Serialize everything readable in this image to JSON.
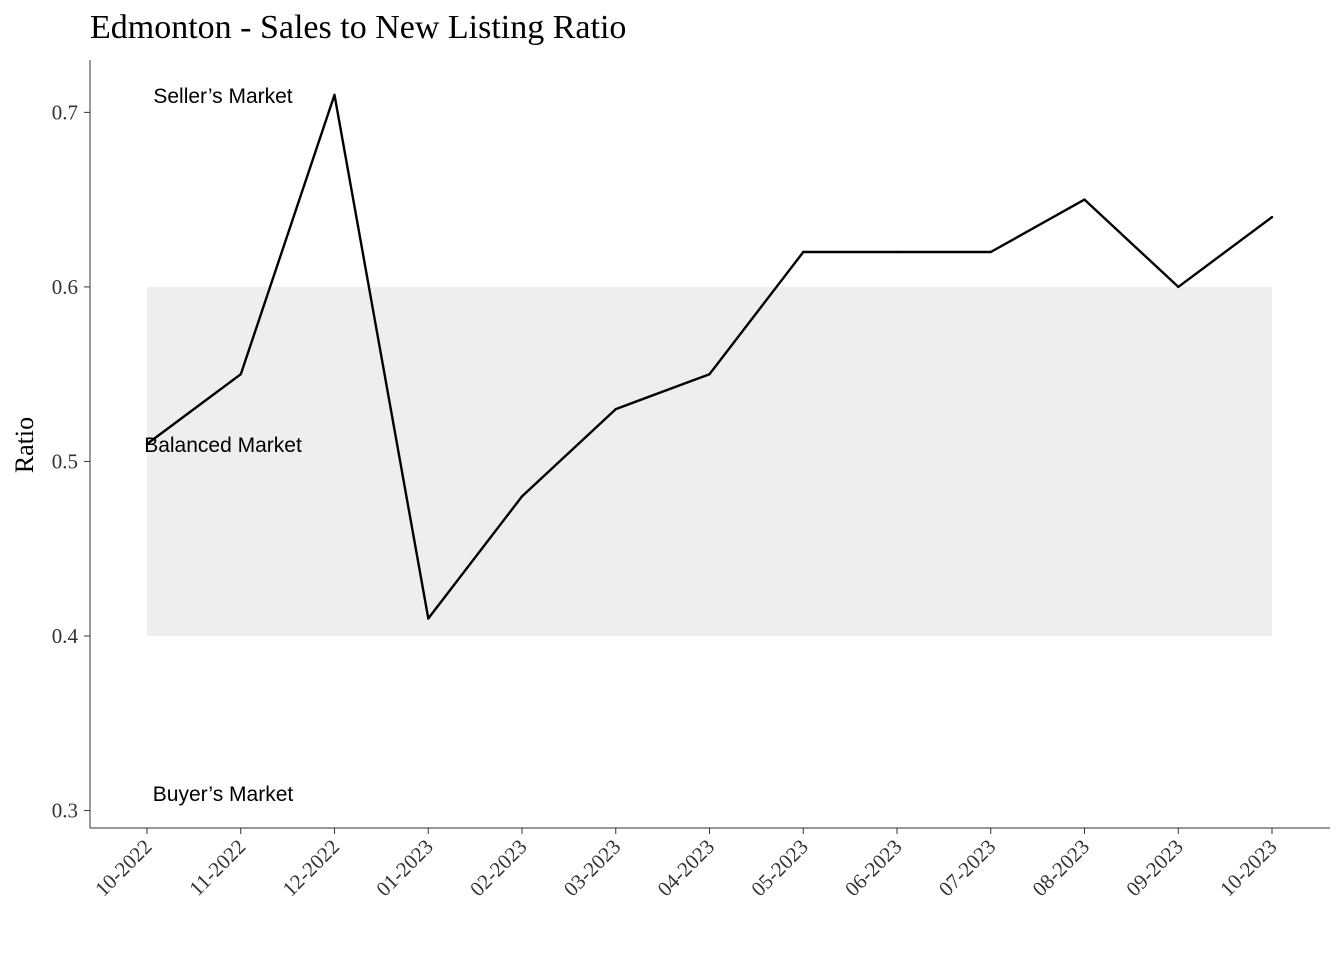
{
  "chart_data": {
    "type": "line",
    "title": "Edmonton - Sales to New Listing Ratio",
    "xlabel": "",
    "ylabel": "Ratio",
    "categories": [
      "10-2022",
      "11-2022",
      "12-2022",
      "01-2023",
      "02-2023",
      "03-2023",
      "04-2023",
      "05-2023",
      "06-2023",
      "07-2023",
      "08-2023",
      "09-2023",
      "10-2023"
    ],
    "values": [
      0.51,
      0.55,
      0.71,
      0.41,
      0.48,
      0.53,
      0.55,
      0.62,
      0.62,
      0.62,
      0.65,
      0.6,
      0.64
    ],
    "ylim": [
      0.29,
      0.73
    ],
    "yticks": [
      0.3,
      0.4,
      0.5,
      0.6,
      0.7
    ],
    "ytick_labels": [
      "0.3",
      "0.4",
      "0.5",
      "0.6",
      "0.7"
    ],
    "balanced_band": {
      "ymin": 0.4,
      "ymax": 0.6,
      "color": "#d9d9d9"
    },
    "annotations": [
      {
        "id": "sellers",
        "text": "Seller’s Market",
        "y": 0.71
      },
      {
        "id": "balanced",
        "text": "Balanced Market",
        "y": 0.51
      },
      {
        "id": "buyers",
        "text": "Buyer’s Market",
        "y": 0.31
      }
    ],
    "grid": false,
    "line_color": "#000000"
  }
}
